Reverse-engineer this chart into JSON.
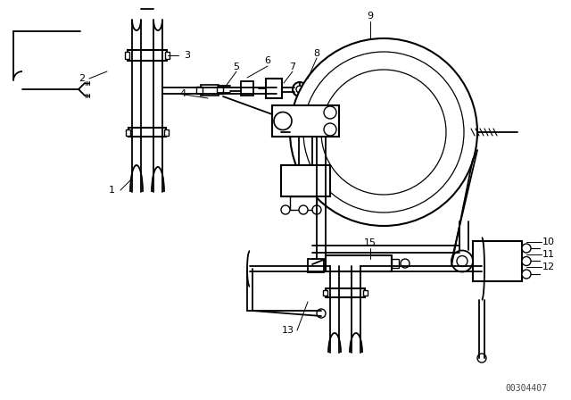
{
  "bg_color": "#ffffff",
  "line_color": "#000000",
  "part_number": "00304407",
  "fig_width": 6.4,
  "fig_height": 4.48,
  "dpi": 100
}
